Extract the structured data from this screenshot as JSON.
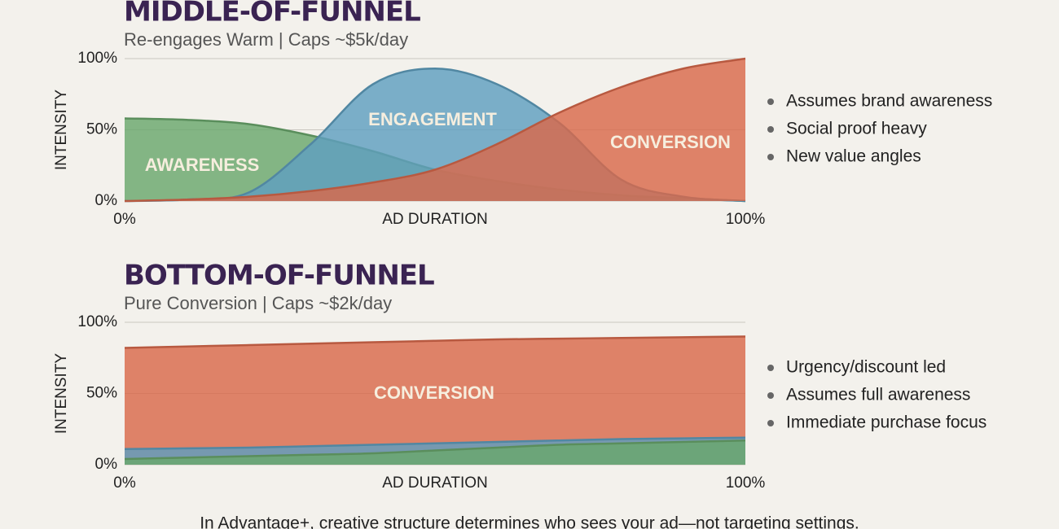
{
  "chart_data": [
    {
      "type": "area",
      "title": "MIDDLE-OF-FUNNEL",
      "subtitle": "Re-engages Warm | Caps ~$5k/day",
      "xlabel": "AD DURATION",
      "ylabel": "INTENSITY",
      "x": [
        0,
        10,
        20,
        30,
        40,
        50,
        60,
        70,
        80,
        90,
        100
      ],
      "xlim": [
        0,
        100
      ],
      "xticks": [
        {
          "value": 0,
          "label": "0%"
        },
        {
          "value": 100,
          "label": "100%"
        }
      ],
      "ylim": [
        0,
        100
      ],
      "yticks": [
        {
          "value": 0,
          "label": "0%"
        },
        {
          "value": 50,
          "label": "50%"
        },
        {
          "value": 100,
          "label": "100%"
        }
      ],
      "grid": true,
      "series": [
        {
          "name": "AWARENESS",
          "color": "#6aa76c",
          "values": [
            58,
            57,
            54,
            46,
            35,
            22,
            14,
            8,
            4,
            2,
            0
          ]
        },
        {
          "name": "ENGAGEMENT",
          "color": "#5f9fbf",
          "values": [
            0,
            1,
            6,
            40,
            82,
            93,
            82,
            55,
            15,
            3,
            0
          ]
        },
        {
          "name": "CONVERSION",
          "color": "#d9694b",
          "values": [
            0,
            1,
            3,
            7,
            13,
            22,
            40,
            62,
            80,
            93,
            100
          ]
        }
      ],
      "notes": [
        "Assumes brand awareness",
        "Social proof heavy",
        "New value angles"
      ]
    },
    {
      "type": "area",
      "title": "BOTTOM-OF-FUNNEL",
      "subtitle": "Pure Conversion | Caps ~$2k/day",
      "xlabel": "AD DURATION",
      "ylabel": "INTENSITY",
      "x": [
        0,
        10,
        20,
        30,
        40,
        50,
        60,
        70,
        80,
        90,
        100
      ],
      "xlim": [
        0,
        100
      ],
      "xticks": [
        {
          "value": 0,
          "label": "0%"
        },
        {
          "value": 100,
          "label": "100%"
        }
      ],
      "ylim": [
        0,
        100
      ],
      "yticks": [
        {
          "value": 0,
          "label": "0%"
        },
        {
          "value": 50,
          "label": "50%"
        },
        {
          "value": 100,
          "label": "100%"
        }
      ],
      "grid": true,
      "series": [
        {
          "name": "CONVERSION",
          "color": "#d9694b",
          "values": [
            82,
            83,
            84,
            85,
            86,
            87,
            88,
            88.5,
            89,
            89.5,
            90
          ]
        },
        {
          "color": "#5f9fbf",
          "values": [
            11,
            11.5,
            12,
            13,
            14,
            15,
            16,
            17,
            18,
            18.5,
            19
          ]
        },
        {
          "color": "#6aa76c",
          "values": [
            4,
            5,
            6,
            7,
            8,
            10,
            12,
            14,
            15,
            16,
            17
          ]
        }
      ],
      "notes": [
        "Urgency/discount led",
        "Assumes full awareness",
        "Immediate purchase focus"
      ]
    }
  ],
  "caption": "In Advantage+, creative structure determines who sees your ad—not targeting settings."
}
